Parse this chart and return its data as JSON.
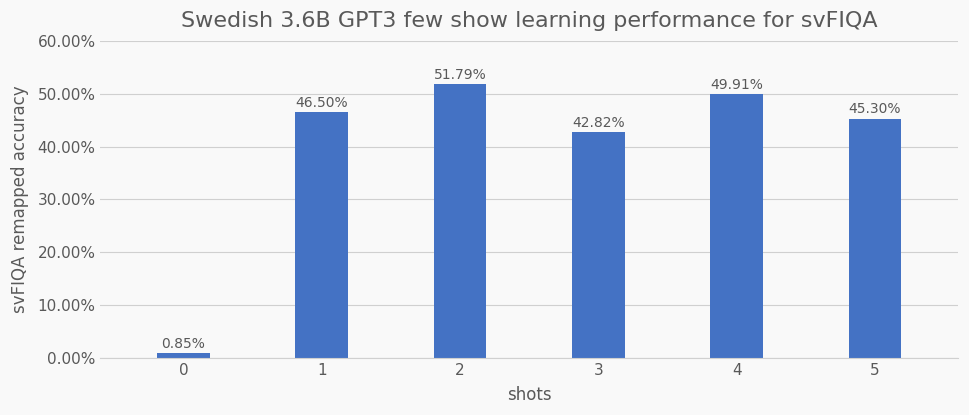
{
  "title": "Swedish 3.6B GPT3 few show learning performance for svFIQA",
  "xlabel": "shots",
  "ylabel": "svFIQA remapped accuracy",
  "categories": [
    0,
    1,
    2,
    3,
    4,
    5
  ],
  "values": [
    0.0085,
    0.465,
    0.5179,
    0.4282,
    0.4991,
    0.453
  ],
  "labels": [
    "0.85%",
    "46.50%",
    "51.79%",
    "42.82%",
    "49.91%",
    "45.30%"
  ],
  "bar_color": "#4472C4",
  "ylim": [
    0,
    0.6
  ],
  "yticks": [
    0.0,
    0.1,
    0.2,
    0.3,
    0.4,
    0.5,
    0.6
  ],
  "ytick_labels": [
    "0.00%",
    "10.00%",
    "20.00%",
    "30.00%",
    "40.00%",
    "50.00%",
    "60.00%"
  ],
  "background_color": "#f9f9f9",
  "grid_color": "#d0d0d0",
  "title_fontsize": 16,
  "label_fontsize": 12,
  "tick_fontsize": 11,
  "annotation_fontsize": 10,
  "bar_width": 0.38,
  "text_color": "#595959"
}
